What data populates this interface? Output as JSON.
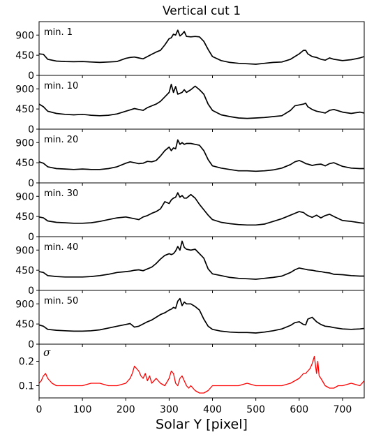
{
  "chart_data": {
    "type": "line",
    "title": "Vertical cut 1",
    "xlabel": "Solar Y [pixel]",
    "xlim": [
      0,
      750
    ],
    "x_ticks": [
      0,
      100,
      200,
      300,
      400,
      500,
      600,
      700
    ],
    "x_tick_labels": [
      "0",
      "100",
      "200",
      "300",
      "400",
      "500",
      "600",
      "700"
    ],
    "panels": [
      {
        "label": "min. 1",
        "ylim": [
          0,
          1200
        ],
        "y_ticks": [
          0,
          450,
          900
        ],
        "y_tick_labels": [
          "0",
          "450",
          "900"
        ],
        "color": "#000000",
        "series": [
          {
            "x": [
              0,
              10,
              20,
              40,
              60,
              80,
              100,
              120,
              140,
              160,
              180,
              200,
              210,
              220,
              230,
              240,
              250,
              260,
              270,
              280,
              290,
              300,
              305,
              310,
              315,
              320,
              325,
              330,
              335,
              340,
              350,
              360,
              370,
              380,
              390,
              400,
              420,
              440,
              460,
              480,
              500,
              520,
              540,
              560,
              580,
              590,
              600,
              610,
              615,
              620,
              630,
              640,
              650,
              660,
              670,
              680,
              700,
              720,
              740,
              750
            ],
            "y": [
              480,
              470,
              360,
              320,
              310,
              305,
              310,
              300,
              290,
              300,
              310,
              380,
              400,
              410,
              390,
              370,
              420,
              470,
              520,
              560,
              680,
              820,
              840,
              920,
              900,
              1010,
              880,
              920,
              980,
              870,
              860,
              870,
              860,
              760,
              580,
              420,
              330,
              290,
              270,
              260,
              250,
              270,
              290,
              300,
              360,
              420,
              480,
              560,
              560,
              480,
              420,
              400,
              360,
              340,
              390,
              360,
              330,
              350,
              390,
              420
            ]
          }
        ]
      },
      {
        "label": "min. 10",
        "ylim": [
          0,
          1200
        ],
        "y_ticks": [
          0,
          450,
          900
        ],
        "y_tick_labels": [
          "0",
          "450",
          "900"
        ],
        "color": "#000000",
        "series": [
          {
            "x": [
              0,
              10,
              20,
              40,
              60,
              80,
              100,
              120,
              140,
              160,
              180,
              200,
              210,
              220,
              230,
              240,
              250,
              260,
              270,
              280,
              290,
              300,
              305,
              310,
              315,
              320,
              325,
              330,
              335,
              340,
              350,
              360,
              370,
              380,
              390,
              400,
              420,
              440,
              460,
              480,
              500,
              520,
              540,
              560,
              580,
              590,
              600,
              610,
              615,
              620,
              630,
              640,
              650,
              660,
              670,
              680,
              700,
              720,
              740,
              750
            ],
            "y": [
              560,
              500,
              400,
              350,
              330,
              320,
              330,
              310,
              300,
              310,
              340,
              400,
              430,
              460,
              440,
              420,
              480,
              520,
              560,
              620,
              720,
              820,
              1000,
              820,
              950,
              780,
              800,
              820,
              880,
              820,
              880,
              960,
              880,
              780,
              560,
              420,
              320,
              280,
              250,
              240,
              250,
              260,
              280,
              300,
              420,
              520,
              540,
              560,
              580,
              500,
              440,
              400,
              380,
              360,
              420,
              440,
              380,
              350,
              380,
              360
            ]
          }
        ]
      },
      {
        "label": "min. 20",
        "ylim": [
          0,
          1200
        ],
        "y_ticks": [
          0,
          450,
          900
        ],
        "y_tick_labels": [
          "0",
          "450",
          "900"
        ],
        "color": "#000000",
        "series": [
          {
            "x": [
              0,
              10,
              20,
              40,
              60,
              80,
              100,
              120,
              140,
              160,
              180,
              200,
              210,
              220,
              230,
              240,
              250,
              260,
              270,
              280,
              290,
              300,
              305,
              310,
              315,
              320,
              325,
              330,
              335,
              340,
              350,
              360,
              370,
              380,
              390,
              400,
              420,
              440,
              460,
              480,
              500,
              520,
              540,
              560,
              580,
              590,
              600,
              610,
              615,
              620,
              630,
              640,
              650,
              660,
              670,
              680,
              700,
              720,
              740,
              750
            ],
            "y": [
              470,
              440,
              360,
              320,
              310,
              300,
              310,
              300,
              300,
              320,
              360,
              440,
              470,
              450,
              430,
              440,
              480,
              470,
              500,
              600,
              720,
              800,
              720,
              780,
              760,
              960,
              860,
              900,
              860,
              880,
              880,
              860,
              840,
              720,
              520,
              380,
              330,
              300,
              270,
              270,
              260,
              270,
              290,
              330,
              410,
              470,
              500,
              460,
              430,
              420,
              390,
              410,
              420,
              380,
              430,
              450,
              370,
              330,
              320,
              320
            ]
          }
        ]
      },
      {
        "label": "min. 30",
        "ylim": [
          0,
          1200
        ],
        "y_ticks": [
          0,
          450,
          900
        ],
        "y_tick_labels": [
          "0",
          "450",
          "900"
        ],
        "color": "#000000",
        "series": [
          {
            "x": [
              0,
              10,
              20,
              40,
              60,
              80,
              100,
              120,
              140,
              160,
              180,
              200,
              210,
              220,
              230,
              240,
              250,
              260,
              270,
              280,
              290,
              300,
              305,
              310,
              315,
              320,
              325,
              330,
              335,
              340,
              350,
              360,
              370,
              380,
              390,
              400,
              420,
              440,
              460,
              480,
              500,
              520,
              540,
              560,
              580,
              590,
              600,
              610,
              615,
              620,
              630,
              640,
              650,
              660,
              670,
              680,
              700,
              720,
              740,
              750
            ],
            "y": [
              440,
              420,
              350,
              320,
              310,
              300,
              300,
              310,
              340,
              380,
              420,
              440,
              420,
              400,
              380,
              440,
              470,
              520,
              560,
              620,
              780,
              740,
              820,
              860,
              880,
              980,
              880,
              920,
              860,
              860,
              940,
              860,
              720,
              600,
              480,
              380,
              320,
              290,
              270,
              260,
              260,
              280,
              340,
              400,
              480,
              520,
              560,
              540,
              500,
              470,
              430,
              480,
              420,
              470,
              500,
              450,
              360,
              340,
              310,
              300
            ]
          }
        ]
      },
      {
        "label": "min. 40",
        "ylim": [
          0,
          1200
        ],
        "y_ticks": [
          0,
          450,
          900
        ],
        "y_tick_labels": [
          "0",
          "450",
          "900"
        ],
        "color": "#000000",
        "series": [
          {
            "x": [
              0,
              10,
              20,
              40,
              60,
              80,
              100,
              120,
              140,
              160,
              180,
              200,
              210,
              220,
              230,
              240,
              250,
              260,
              270,
              280,
              290,
              300,
              305,
              310,
              315,
              320,
              325,
              330,
              335,
              340,
              350,
              360,
              370,
              380,
              390,
              400,
              420,
              440,
              460,
              480,
              500,
              520,
              540,
              560,
              580,
              590,
              600,
              610,
              615,
              620,
              630,
              640,
              650,
              660,
              670,
              680,
              700,
              720,
              740,
              750
            ],
            "y": [
              420,
              400,
              330,
              310,
              300,
              300,
              300,
              310,
              330,
              360,
              400,
              420,
              430,
              450,
              460,
              440,
              480,
              520,
              600,
              700,
              780,
              820,
              800,
              820,
              880,
              980,
              900,
              1100,
              960,
              920,
              900,
              920,
              820,
              720,
              480,
              370,
              330,
              290,
              270,
              260,
              250,
              270,
              290,
              320,
              400,
              460,
              500,
              480,
              470,
              460,
              450,
              430,
              420,
              400,
              390,
              360,
              350,
              330,
              320,
              320
            ]
          }
        ]
      },
      {
        "label": "min. 50",
        "ylim": [
          0,
          1200
        ],
        "y_ticks": [
          0,
          450,
          900
        ],
        "y_tick_labels": [
          "0",
          "450",
          "900"
        ],
        "color": "#000000",
        "series": [
          {
            "x": [
              0,
              10,
              20,
              40,
              60,
              80,
              100,
              120,
              140,
              160,
              180,
              200,
              210,
              220,
              230,
              240,
              250,
              260,
              270,
              280,
              290,
              300,
              305,
              310,
              315,
              320,
              325,
              330,
              335,
              340,
              350,
              360,
              370,
              380,
              390,
              400,
              420,
              440,
              460,
              480,
              500,
              520,
              540,
              560,
              580,
              590,
              600,
              610,
              615,
              620,
              630,
              640,
              650,
              660,
              670,
              680,
              700,
              720,
              740,
              750
            ],
            "y": [
              430,
              400,
              330,
              310,
              300,
              290,
              290,
              300,
              320,
              360,
              400,
              440,
              460,
              380,
              400,
              450,
              500,
              540,
              600,
              660,
              700,
              760,
              780,
              820,
              800,
              960,
              1020,
              860,
              940,
              900,
              900,
              840,
              760,
              560,
              400,
              330,
              290,
              270,
              260,
              260,
              250,
              270,
              300,
              340,
              420,
              480,
              500,
              440,
              430,
              560,
              600,
              500,
              440,
              400,
              390,
              370,
              340,
              330,
              340,
              350
            ]
          }
        ]
      },
      {
        "label": "σ",
        "ylim": [
          0.05,
          0.27
        ],
        "y_ticks": [
          0.1,
          0.2
        ],
        "y_tick_labels": [
          "0.1",
          "0.2"
        ],
        "color": "#ff0000",
        "series": [
          {
            "x": [
              0,
              5,
              10,
              15,
              20,
              30,
              40,
              60,
              80,
              100,
              120,
              140,
              160,
              180,
              200,
              210,
              215,
              220,
              225,
              230,
              235,
              240,
              245,
              250,
              255,
              260,
              265,
              270,
              280,
              290,
              300,
              305,
              310,
              315,
              320,
              325,
              330,
              335,
              340,
              345,
              350,
              360,
              370,
              380,
              390,
              400,
              420,
              440,
              460,
              480,
              500,
              520,
              540,
              560,
              580,
              590,
              600,
              605,
              610,
              615,
              620,
              625,
              630,
              635,
              640,
              643,
              646,
              650,
              660,
              670,
              680,
              690,
              700,
              720,
              740,
              750
            ],
            "y": [
              0.11,
              0.12,
              0.14,
              0.15,
              0.13,
              0.11,
              0.1,
              0.1,
              0.1,
              0.1,
              0.11,
              0.11,
              0.1,
              0.1,
              0.11,
              0.13,
              0.15,
              0.18,
              0.17,
              0.16,
              0.14,
              0.13,
              0.15,
              0.12,
              0.14,
              0.11,
              0.12,
              0.13,
              0.11,
              0.1,
              0.13,
              0.16,
              0.15,
              0.11,
              0.1,
              0.13,
              0.14,
              0.12,
              0.1,
              0.09,
              0.1,
              0.08,
              0.07,
              0.07,
              0.08,
              0.1,
              0.1,
              0.1,
              0.1,
              0.11,
              0.1,
              0.1,
              0.1,
              0.1,
              0.11,
              0.12,
              0.13,
              0.14,
              0.15,
              0.15,
              0.16,
              0.17,
              0.19,
              0.22,
              0.15,
              0.2,
              0.14,
              0.13,
              0.1,
              0.09,
              0.09,
              0.1,
              0.1,
              0.11,
              0.1,
              0.12
            ]
          }
        ]
      }
    ]
  }
}
